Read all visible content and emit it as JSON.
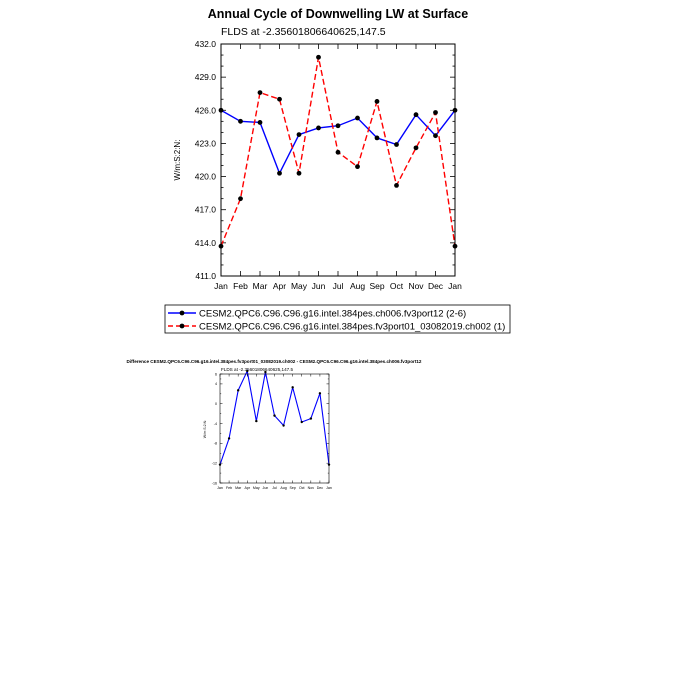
{
  "chart_data": [
    {
      "type": "line",
      "title": "Annual Cycle of Downwelling LW at Surface",
      "subtitle": "FLDS at -2.35601806640625,147.5",
      "ylabel": "W/m:S:2:N:",
      "xlabel": "",
      "ylim": [
        411.0,
        432.0
      ],
      "yticks": [
        "411.0",
        "414.0",
        "417.0",
        "420.0",
        "423.0",
        "426.0",
        "429.0",
        "432.0"
      ],
      "categories": [
        "Jan",
        "Feb",
        "Mar",
        "Apr",
        "May",
        "Jun",
        "Jul",
        "Aug",
        "Sep",
        "Oct",
        "Nov",
        "Dec",
        "Jan"
      ],
      "grid": false,
      "legend_placement": "bottom",
      "series": [
        {
          "name": "CESM2.QPC6.C96.C96.g16.intel.384pes.ch006.fv3port12 (2-6)",
          "color": "#0000ff",
          "dash": "solid",
          "values": [
            426.0,
            425.0,
            424.9,
            420.3,
            423.8,
            424.4,
            424.6,
            425.3,
            423.5,
            422.9,
            425.6,
            423.7,
            426.0
          ]
        },
        {
          "name": "CESM2.QPC6.C96.C96.g16.intel.384pes.fv3port01_03082019.ch002 (1)",
          "color": "#ff0000",
          "dash": "dashed",
          "values": [
            413.7,
            418.0,
            427.6,
            427.0,
            420.3,
            430.8,
            422.2,
            420.9,
            426.8,
            419.2,
            422.6,
            425.8,
            413.7
          ]
        }
      ]
    },
    {
      "type": "line",
      "title": "Difference CESM2.QPC6.C96.C96.g16.intel.384pes.fv3port01_03082019.ch002 - CESM2.QPC6.C96.C96.g16.intel.384pes.ch006.fv3port12",
      "subtitle": "FLDS at -2.35601806640625,147.5",
      "ylabel": "W/m:S:2:N:",
      "xlabel": "",
      "ylim": [
        -16,
        6
      ],
      "yticks": [
        "-16",
        "-12",
        "-8",
        "-4",
        "0",
        "4",
        "6"
      ],
      "categories": [
        "Jan",
        "Feb",
        "Mar",
        "Apr",
        "May",
        "Jun",
        "Jul",
        "Aug",
        "Sep",
        "Oct",
        "Nov",
        "Dec",
        "Jan"
      ],
      "grid": false,
      "series": [
        {
          "color": "#0000ff",
          "dash": "solid",
          "values": [
            -12.3,
            -7.0,
            2.7,
            6.6,
            -3.5,
            6.4,
            -2.4,
            -4.4,
            3.3,
            -3.7,
            -3.0,
            2.1,
            -12.3
          ]
        }
      ]
    }
  ]
}
